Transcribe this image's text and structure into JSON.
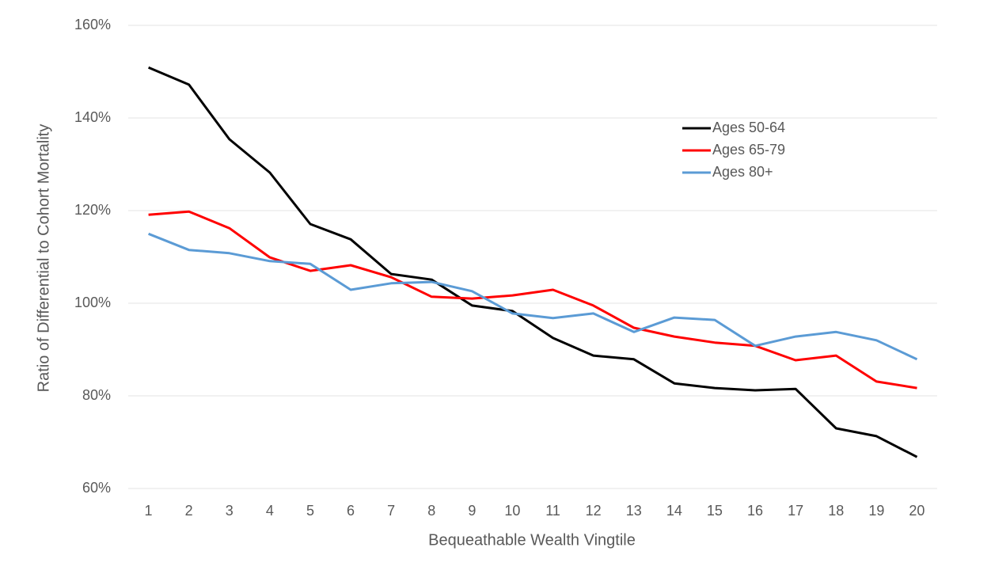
{
  "chart_data": {
    "type": "line",
    "x_label": "Bequeathable Wealth Vingtile",
    "y_label": "Ratio of Differential to Cohort Mortality",
    "categories": [
      "1",
      "2",
      "3",
      "4",
      "5",
      "6",
      "7",
      "8",
      "9",
      "10",
      "11",
      "12",
      "13",
      "14",
      "15",
      "16",
      "17",
      "18",
      "19",
      "20"
    ],
    "series": [
      {
        "name": "Ages 50-64",
        "color": "#000000",
        "values": [
          150.9,
          147.2,
          135.4,
          128.2,
          117.1,
          113.8,
          106.3,
          105.1,
          99.5,
          98.3,
          92.5,
          88.7,
          87.9,
          82.7,
          81.7,
          81.2,
          81.5,
          73.0,
          71.3,
          66.8
        ]
      },
      {
        "name": "Ages 65-79",
        "color": "#ff0000",
        "values": [
          119.1,
          119.8,
          116.2,
          109.9,
          107.0,
          108.2,
          105.6,
          101.4,
          101.0,
          101.7,
          102.9,
          99.5,
          94.7,
          92.8,
          91.5,
          90.8,
          87.7,
          88.7,
          83.1,
          81.7
        ]
      },
      {
        "name": "Ages 80+",
        "color": "#5b9bd5",
        "values": [
          115.0,
          111.5,
          110.8,
          109.1,
          108.5,
          102.9,
          104.3,
          104.6,
          102.6,
          97.8,
          96.8,
          97.8,
          93.8,
          96.9,
          96.4,
          90.8,
          92.8,
          93.8,
          92.0,
          87.9
        ]
      }
    ],
    "ylim": [
      60,
      160
    ],
    "yticks": [
      {
        "value": 60,
        "label": "60%"
      },
      {
        "value": 80,
        "label": "80%"
      },
      {
        "value": 100,
        "label": "100%"
      },
      {
        "value": 120,
        "label": "120%"
      },
      {
        "value": 140,
        "label": "140%"
      },
      {
        "value": 160,
        "label": "160%"
      }
    ],
    "grid": true,
    "legend": "upper right"
  }
}
